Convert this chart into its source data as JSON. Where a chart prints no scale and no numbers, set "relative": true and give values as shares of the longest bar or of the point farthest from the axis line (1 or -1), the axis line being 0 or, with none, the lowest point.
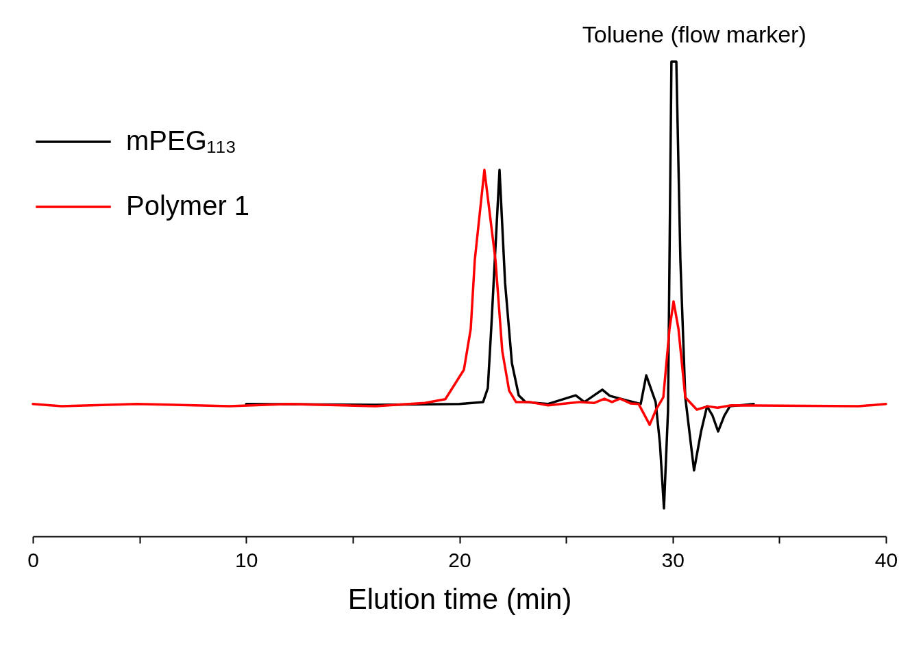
{
  "chart_data": {
    "type": "line",
    "xlabel": "Elution time (min)",
    "relative": true,
    "xlim": [
      0,
      40
    ],
    "xticks": [
      0,
      {
        "value": 5,
        "label": null
      },
      10,
      {
        "value": 15,
        "label": null
      },
      20,
      {
        "value": 25,
        "label": null
      },
      30,
      {
        "value": 35,
        "label": null
      },
      40
    ],
    "grid": false,
    "legend": "top left",
    "marker": "none",
    "line_style": "solid",
    "annotations": [
      {
        "text": "Toluene (flow marker)",
        "x": 30.05,
        "y": 1
      }
    ],
    "series": [
      {
        "name": "mPEG₁₁₃",
        "color": "#000000",
        "x": [
          10,
          16.06,
          20,
          21.11,
          21.33,
          21.49,
          21.88,
          22.14,
          22.46,
          22.78,
          23.1,
          24.16,
          25.45,
          25.86,
          26.7,
          27.05,
          27.86,
          28.5,
          28.76,
          29.2,
          29.4,
          29.59,
          29.78,
          29.94,
          30.17,
          30.36,
          30.59,
          31.0,
          31.33,
          31.61,
          31.87,
          32.13,
          32.42,
          32.68,
          33.8
        ],
        "values": [
          0.279,
          0.277,
          0.279,
          0.283,
          0.312,
          0.437,
          0.772,
          0.534,
          0.365,
          0.297,
          0.283,
          0.279,
          0.297,
          0.283,
          0.309,
          0.296,
          0.286,
          0.279,
          0.339,
          0.283,
          0.196,
          0.059,
          0.264,
          1.0,
          1.0,
          0.582,
          0.293,
          0.139,
          0.221,
          0.274,
          0.254,
          0.221,
          0.254,
          0.274,
          0.279
        ]
      },
      {
        "name": "Polymer 1",
        "color": "#ff0000",
        "x": [
          0,
          1.35,
          4.88,
          9.22,
          12,
          16.06,
          18.38,
          19.34,
          20.21,
          20.53,
          20.72,
          21.17,
          21.69,
          22.01,
          22.33,
          22.65,
          23.29,
          24.16,
          25.22,
          25.67,
          26.31,
          26.8,
          27.15,
          27.53,
          28.02,
          28.4,
          28.92,
          29.23,
          29.56,
          29.85,
          30.04,
          30.27,
          30.59,
          31.13,
          31.65,
          32.1,
          32.74,
          38.71,
          40
        ],
        "values": [
          0.279,
          0.274,
          0.279,
          0.274,
          0.279,
          0.274,
          0.281,
          0.289,
          0.351,
          0.437,
          0.582,
          0.772,
          0.582,
          0.39,
          0.307,
          0.283,
          0.283,
          0.276,
          0.281,
          0.283,
          0.281,
          0.29,
          0.283,
          0.29,
          0.28,
          0.279,
          0.235,
          0.268,
          0.293,
          0.437,
          0.495,
          0.437,
          0.293,
          0.267,
          0.274,
          0.271,
          0.276,
          0.274,
          0.279
        ]
      }
    ]
  }
}
